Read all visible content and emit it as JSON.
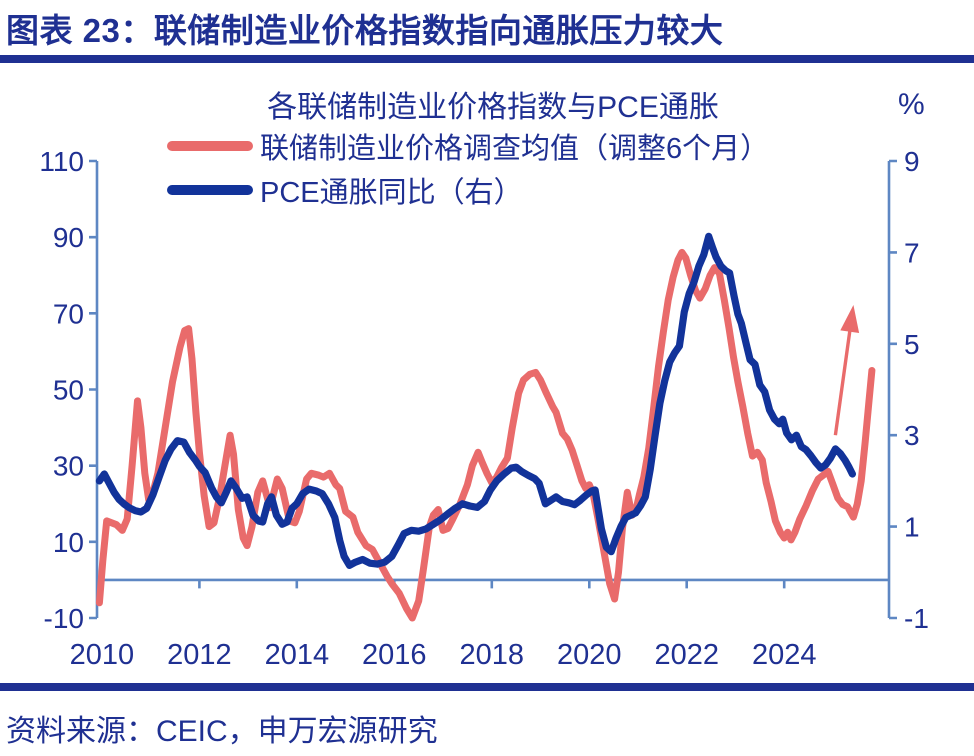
{
  "header": {
    "title": "图表 23：联储制造业价格指数指向通胀压力较大"
  },
  "chart": {
    "title": "各联储制造业价格指数与PCE通胀",
    "unit_label": "%",
    "legend": [
      {
        "label": "联储制造业价格调查均值（调整6个月）",
        "color": "#E96B6B"
      },
      {
        "label": "PCE通胀同比（右）",
        "color": "#12339A"
      }
    ]
  },
  "footer": {
    "source": "资料来源：CEIC，申万宏源研究"
  },
  "colors": {
    "navy_text": "#1F3092",
    "axis_blue": "#5E87C3",
    "series_red": "#E96B6B",
    "series_blue": "#12339A"
  },
  "chart_data": {
    "type": "line",
    "title": "各联储制造业价格指数与PCE通胀",
    "x_axis": {
      "min": 2009.9,
      "max": 2026.15,
      "tick_years": [
        2010,
        2012,
        2014,
        2016,
        2018,
        2020,
        2022,
        2024
      ]
    },
    "left_axis": {
      "min": -10,
      "max": 110,
      "ticks": [
        110,
        90,
        70,
        50,
        30,
        10,
        -10
      ]
    },
    "right_axis": {
      "min": -1,
      "max": 9,
      "ticks": [
        9,
        7,
        5,
        3,
        1,
        -1
      ],
      "unit": "%"
    },
    "grid": false,
    "legend_position": "top-left",
    "annotation_arrow": {
      "type": "up-arrow",
      "color": "#E96B6B",
      "from_year": 2025.05,
      "from_right_value": 3.0,
      "to_year": 2025.42,
      "to_right_value": 5.85
    },
    "series": [
      {
        "name": "联储制造业价格调查均值（调整6个月）",
        "axis": "left",
        "color": "#E96B6B",
        "points": [
          [
            2009.95,
            -6
          ],
          [
            2010.02,
            5
          ],
          [
            2010.1,
            15.5
          ],
          [
            2010.2,
            15
          ],
          [
            2010.3,
            14.5
          ],
          [
            2010.42,
            13
          ],
          [
            2010.52,
            16
          ],
          [
            2010.62,
            30
          ],
          [
            2010.73,
            47
          ],
          [
            2010.8,
            40
          ],
          [
            2010.88,
            28
          ],
          [
            2010.96,
            21
          ],
          [
            2011.05,
            23
          ],
          [
            2011.15,
            28
          ],
          [
            2011.3,
            40
          ],
          [
            2011.45,
            52
          ],
          [
            2011.6,
            61
          ],
          [
            2011.7,
            65.5
          ],
          [
            2011.78,
            66
          ],
          [
            2011.85,
            58
          ],
          [
            2011.93,
            44
          ],
          [
            2012.0,
            33.5
          ],
          [
            2012.1,
            22
          ],
          [
            2012.2,
            14
          ],
          [
            2012.3,
            15
          ],
          [
            2012.42,
            22
          ],
          [
            2012.55,
            32
          ],
          [
            2012.63,
            38
          ],
          [
            2012.7,
            33
          ],
          [
            2012.8,
            18.5
          ],
          [
            2012.9,
            11
          ],
          [
            2012.98,
            9
          ],
          [
            2013.08,
            14
          ],
          [
            2013.2,
            23
          ],
          [
            2013.3,
            26
          ],
          [
            2013.45,
            19
          ],
          [
            2013.6,
            26.5
          ],
          [
            2013.7,
            24
          ],
          [
            2013.85,
            15.5
          ],
          [
            2013.96,
            15
          ],
          [
            2014.05,
            18
          ],
          [
            2014.2,
            26.5
          ],
          [
            2014.3,
            28
          ],
          [
            2014.45,
            27.5
          ],
          [
            2014.55,
            27
          ],
          [
            2014.67,
            28
          ],
          [
            2014.8,
            25
          ],
          [
            2014.88,
            24
          ],
          [
            2015.0,
            18
          ],
          [
            2015.15,
            16.5
          ],
          [
            2015.25,
            12.5
          ],
          [
            2015.42,
            9
          ],
          [
            2015.55,
            8
          ],
          [
            2015.7,
            4.5
          ],
          [
            2015.85,
            1
          ],
          [
            2015.95,
            -1
          ],
          [
            2016.1,
            -3.5
          ],
          [
            2016.25,
            -7.5
          ],
          [
            2016.37,
            -10
          ],
          [
            2016.5,
            -5.5
          ],
          [
            2016.6,
            3
          ],
          [
            2016.72,
            14
          ],
          [
            2016.8,
            17
          ],
          [
            2016.9,
            18.5
          ],
          [
            2017.0,
            13
          ],
          [
            2017.1,
            13.5
          ],
          [
            2017.2,
            16
          ],
          [
            2017.35,
            20
          ],
          [
            2017.5,
            25
          ],
          [
            2017.6,
            30
          ],
          [
            2017.72,
            33.5
          ],
          [
            2017.8,
            31
          ],
          [
            2017.9,
            28
          ],
          [
            2018.0,
            25.5
          ],
          [
            2018.1,
            27
          ],
          [
            2018.2,
            29.5
          ],
          [
            2018.32,
            32
          ],
          [
            2018.42,
            40
          ],
          [
            2018.55,
            49
          ],
          [
            2018.65,
            52.5
          ],
          [
            2018.78,
            54
          ],
          [
            2018.9,
            54.5
          ],
          [
            2019.0,
            52.5
          ],
          [
            2019.12,
            49
          ],
          [
            2019.25,
            45.5
          ],
          [
            2019.32,
            44
          ],
          [
            2019.45,
            38.5
          ],
          [
            2019.55,
            37
          ],
          [
            2019.65,
            34
          ],
          [
            2019.75,
            30
          ],
          [
            2019.85,
            26
          ],
          [
            2019.93,
            24
          ],
          [
            2020.0,
            25
          ],
          [
            2020.08,
            22.5
          ],
          [
            2020.18,
            16
          ],
          [
            2020.3,
            7.5
          ],
          [
            2020.42,
            -1
          ],
          [
            2020.52,
            -5
          ],
          [
            2020.6,
            2
          ],
          [
            2020.68,
            13.5
          ],
          [
            2020.78,
            23
          ],
          [
            2020.88,
            17
          ],
          [
            2020.95,
            18
          ],
          [
            2021.03,
            22.5
          ],
          [
            2021.12,
            27
          ],
          [
            2021.22,
            34.5
          ],
          [
            2021.32,
            45
          ],
          [
            2021.42,
            56
          ],
          [
            2021.52,
            65
          ],
          [
            2021.62,
            73.5
          ],
          [
            2021.72,
            79.5
          ],
          [
            2021.82,
            84
          ],
          [
            2021.9,
            86
          ],
          [
            2021.98,
            84.5
          ],
          [
            2022.08,
            80
          ],
          [
            2022.18,
            76
          ],
          [
            2022.27,
            74
          ],
          [
            2022.38,
            76.5
          ],
          [
            2022.48,
            80
          ],
          [
            2022.57,
            82
          ],
          [
            2022.67,
            80.5
          ],
          [
            2022.77,
            73.5
          ],
          [
            2022.87,
            66
          ],
          [
            2022.96,
            58.5
          ],
          [
            2023.05,
            52
          ],
          [
            2023.15,
            45.5
          ],
          [
            2023.25,
            38.5
          ],
          [
            2023.35,
            32.5
          ],
          [
            2023.45,
            33.5
          ],
          [
            2023.55,
            31.5
          ],
          [
            2023.63,
            25.5
          ],
          [
            2023.73,
            20.5
          ],
          [
            2023.82,
            15.5
          ],
          [
            2023.92,
            12.5
          ],
          [
            2024.0,
            11
          ],
          [
            2024.07,
            12.5
          ],
          [
            2024.14,
            10.5
          ],
          [
            2024.22,
            12.5
          ],
          [
            2024.32,
            16
          ],
          [
            2024.45,
            19.5
          ],
          [
            2024.58,
            23.5
          ],
          [
            2024.7,
            26.5
          ],
          [
            2024.8,
            27.5
          ],
          [
            2024.9,
            28.5
          ],
          [
            2025.0,
            25
          ],
          [
            2025.1,
            21.5
          ],
          [
            2025.2,
            19.8
          ],
          [
            2025.3,
            19.2
          ],
          [
            2025.42,
            16.5
          ],
          [
            2025.5,
            20
          ],
          [
            2025.58,
            26
          ],
          [
            2025.66,
            36
          ],
          [
            2025.74,
            47
          ],
          [
            2025.8,
            55
          ]
        ]
      },
      {
        "name": "PCE通胀同比（右）",
        "axis": "right",
        "color": "#12339A",
        "points": [
          [
            2009.95,
            2.0
          ],
          [
            2010.05,
            2.15
          ],
          [
            2010.15,
            1.95
          ],
          [
            2010.25,
            1.75
          ],
          [
            2010.35,
            1.6
          ],
          [
            2010.45,
            1.5
          ],
          [
            2010.55,
            1.42
          ],
          [
            2010.68,
            1.35
          ],
          [
            2010.8,
            1.32
          ],
          [
            2010.92,
            1.4
          ],
          [
            2011.05,
            1.7
          ],
          [
            2011.18,
            2.1
          ],
          [
            2011.3,
            2.45
          ],
          [
            2011.42,
            2.7
          ],
          [
            2011.55,
            2.88
          ],
          [
            2011.68,
            2.85
          ],
          [
            2011.8,
            2.62
          ],
          [
            2011.92,
            2.45
          ],
          [
            2012.0,
            2.32
          ],
          [
            2012.12,
            2.18
          ],
          [
            2012.25,
            1.85
          ],
          [
            2012.35,
            1.65
          ],
          [
            2012.45,
            1.52
          ],
          [
            2012.55,
            1.75
          ],
          [
            2012.65,
            2.0
          ],
          [
            2012.75,
            1.85
          ],
          [
            2012.88,
            1.62
          ],
          [
            2012.98,
            1.65
          ],
          [
            2013.1,
            1.25
          ],
          [
            2013.22,
            1.12
          ],
          [
            2013.3,
            1.1
          ],
          [
            2013.4,
            1.5
          ],
          [
            2013.48,
            1.65
          ],
          [
            2013.58,
            1.25
          ],
          [
            2013.7,
            1.05
          ],
          [
            2013.8,
            1.1
          ],
          [
            2013.9,
            1.4
          ],
          [
            2014.0,
            1.5
          ],
          [
            2014.12,
            1.72
          ],
          [
            2014.25,
            1.82
          ],
          [
            2014.4,
            1.78
          ],
          [
            2014.52,
            1.72
          ],
          [
            2014.65,
            1.5
          ],
          [
            2014.78,
            1.2
          ],
          [
            2014.88,
            0.7
          ],
          [
            2014.97,
            0.35
          ],
          [
            2015.08,
            0.15
          ],
          [
            2015.2,
            0.22
          ],
          [
            2015.35,
            0.28
          ],
          [
            2015.5,
            0.2
          ],
          [
            2015.65,
            0.18
          ],
          [
            2015.8,
            0.22
          ],
          [
            2015.95,
            0.35
          ],
          [
            2016.08,
            0.6
          ],
          [
            2016.2,
            0.85
          ],
          [
            2016.35,
            0.92
          ],
          [
            2016.5,
            0.9
          ],
          [
            2016.65,
            0.95
          ],
          [
            2016.8,
            1.05
          ],
          [
            2016.95,
            1.15
          ],
          [
            2017.1,
            1.28
          ],
          [
            2017.25,
            1.4
          ],
          [
            2017.4,
            1.5
          ],
          [
            2017.55,
            1.45
          ],
          [
            2017.7,
            1.42
          ],
          [
            2017.85,
            1.55
          ],
          [
            2017.97,
            1.8
          ],
          [
            2018.1,
            2.0
          ],
          [
            2018.25,
            2.15
          ],
          [
            2018.4,
            2.28
          ],
          [
            2018.5,
            2.3
          ],
          [
            2018.62,
            2.2
          ],
          [
            2018.75,
            2.12
          ],
          [
            2018.88,
            2.05
          ],
          [
            2018.97,
            1.95
          ],
          [
            2019.1,
            1.5
          ],
          [
            2019.22,
            1.58
          ],
          [
            2019.32,
            1.65
          ],
          [
            2019.45,
            1.55
          ],
          [
            2019.58,
            1.52
          ],
          [
            2019.7,
            1.48
          ],
          [
            2019.82,
            1.58
          ],
          [
            2019.95,
            1.7
          ],
          [
            2020.05,
            1.78
          ],
          [
            2020.12,
            1.8
          ],
          [
            2020.25,
            0.95
          ],
          [
            2020.35,
            0.55
          ],
          [
            2020.45,
            0.45
          ],
          [
            2020.55,
            0.75
          ],
          [
            2020.65,
            1.0
          ],
          [
            2020.75,
            1.2
          ],
          [
            2020.85,
            1.25
          ],
          [
            2020.95,
            1.3
          ],
          [
            2021.05,
            1.45
          ],
          [
            2021.15,
            1.65
          ],
          [
            2021.25,
            2.25
          ],
          [
            2021.35,
            3.0
          ],
          [
            2021.45,
            3.7
          ],
          [
            2021.55,
            4.2
          ],
          [
            2021.65,
            4.6
          ],
          [
            2021.75,
            4.8
          ],
          [
            2021.85,
            4.95
          ],
          [
            2021.95,
            5.7
          ],
          [
            2022.05,
            6.1
          ],
          [
            2022.15,
            6.35
          ],
          [
            2022.25,
            6.7
          ],
          [
            2022.35,
            6.95
          ],
          [
            2022.45,
            7.35
          ],
          [
            2022.53,
            7.1
          ],
          [
            2022.6,
            6.9
          ],
          [
            2022.7,
            6.7
          ],
          [
            2022.8,
            6.6
          ],
          [
            2022.88,
            6.55
          ],
          [
            2022.97,
            6.05
          ],
          [
            2023.05,
            5.65
          ],
          [
            2023.12,
            5.45
          ],
          [
            2023.22,
            5.0
          ],
          [
            2023.3,
            4.65
          ],
          [
            2023.4,
            4.55
          ],
          [
            2023.5,
            4.1
          ],
          [
            2023.6,
            3.95
          ],
          [
            2023.7,
            3.55
          ],
          [
            2023.8,
            3.35
          ],
          [
            2023.9,
            3.25
          ],
          [
            2023.97,
            3.35
          ],
          [
            2024.05,
            3.05
          ],
          [
            2024.15,
            2.9
          ],
          [
            2024.25,
            3.0
          ],
          [
            2024.35,
            2.75
          ],
          [
            2024.45,
            2.68
          ],
          [
            2024.55,
            2.55
          ],
          [
            2024.65,
            2.4
          ],
          [
            2024.75,
            2.28
          ],
          [
            2024.85,
            2.35
          ],
          [
            2024.95,
            2.5
          ],
          [
            2025.05,
            2.7
          ],
          [
            2025.15,
            2.6
          ],
          [
            2025.25,
            2.45
          ],
          [
            2025.33,
            2.3
          ],
          [
            2025.4,
            2.15
          ]
        ]
      }
    ]
  }
}
